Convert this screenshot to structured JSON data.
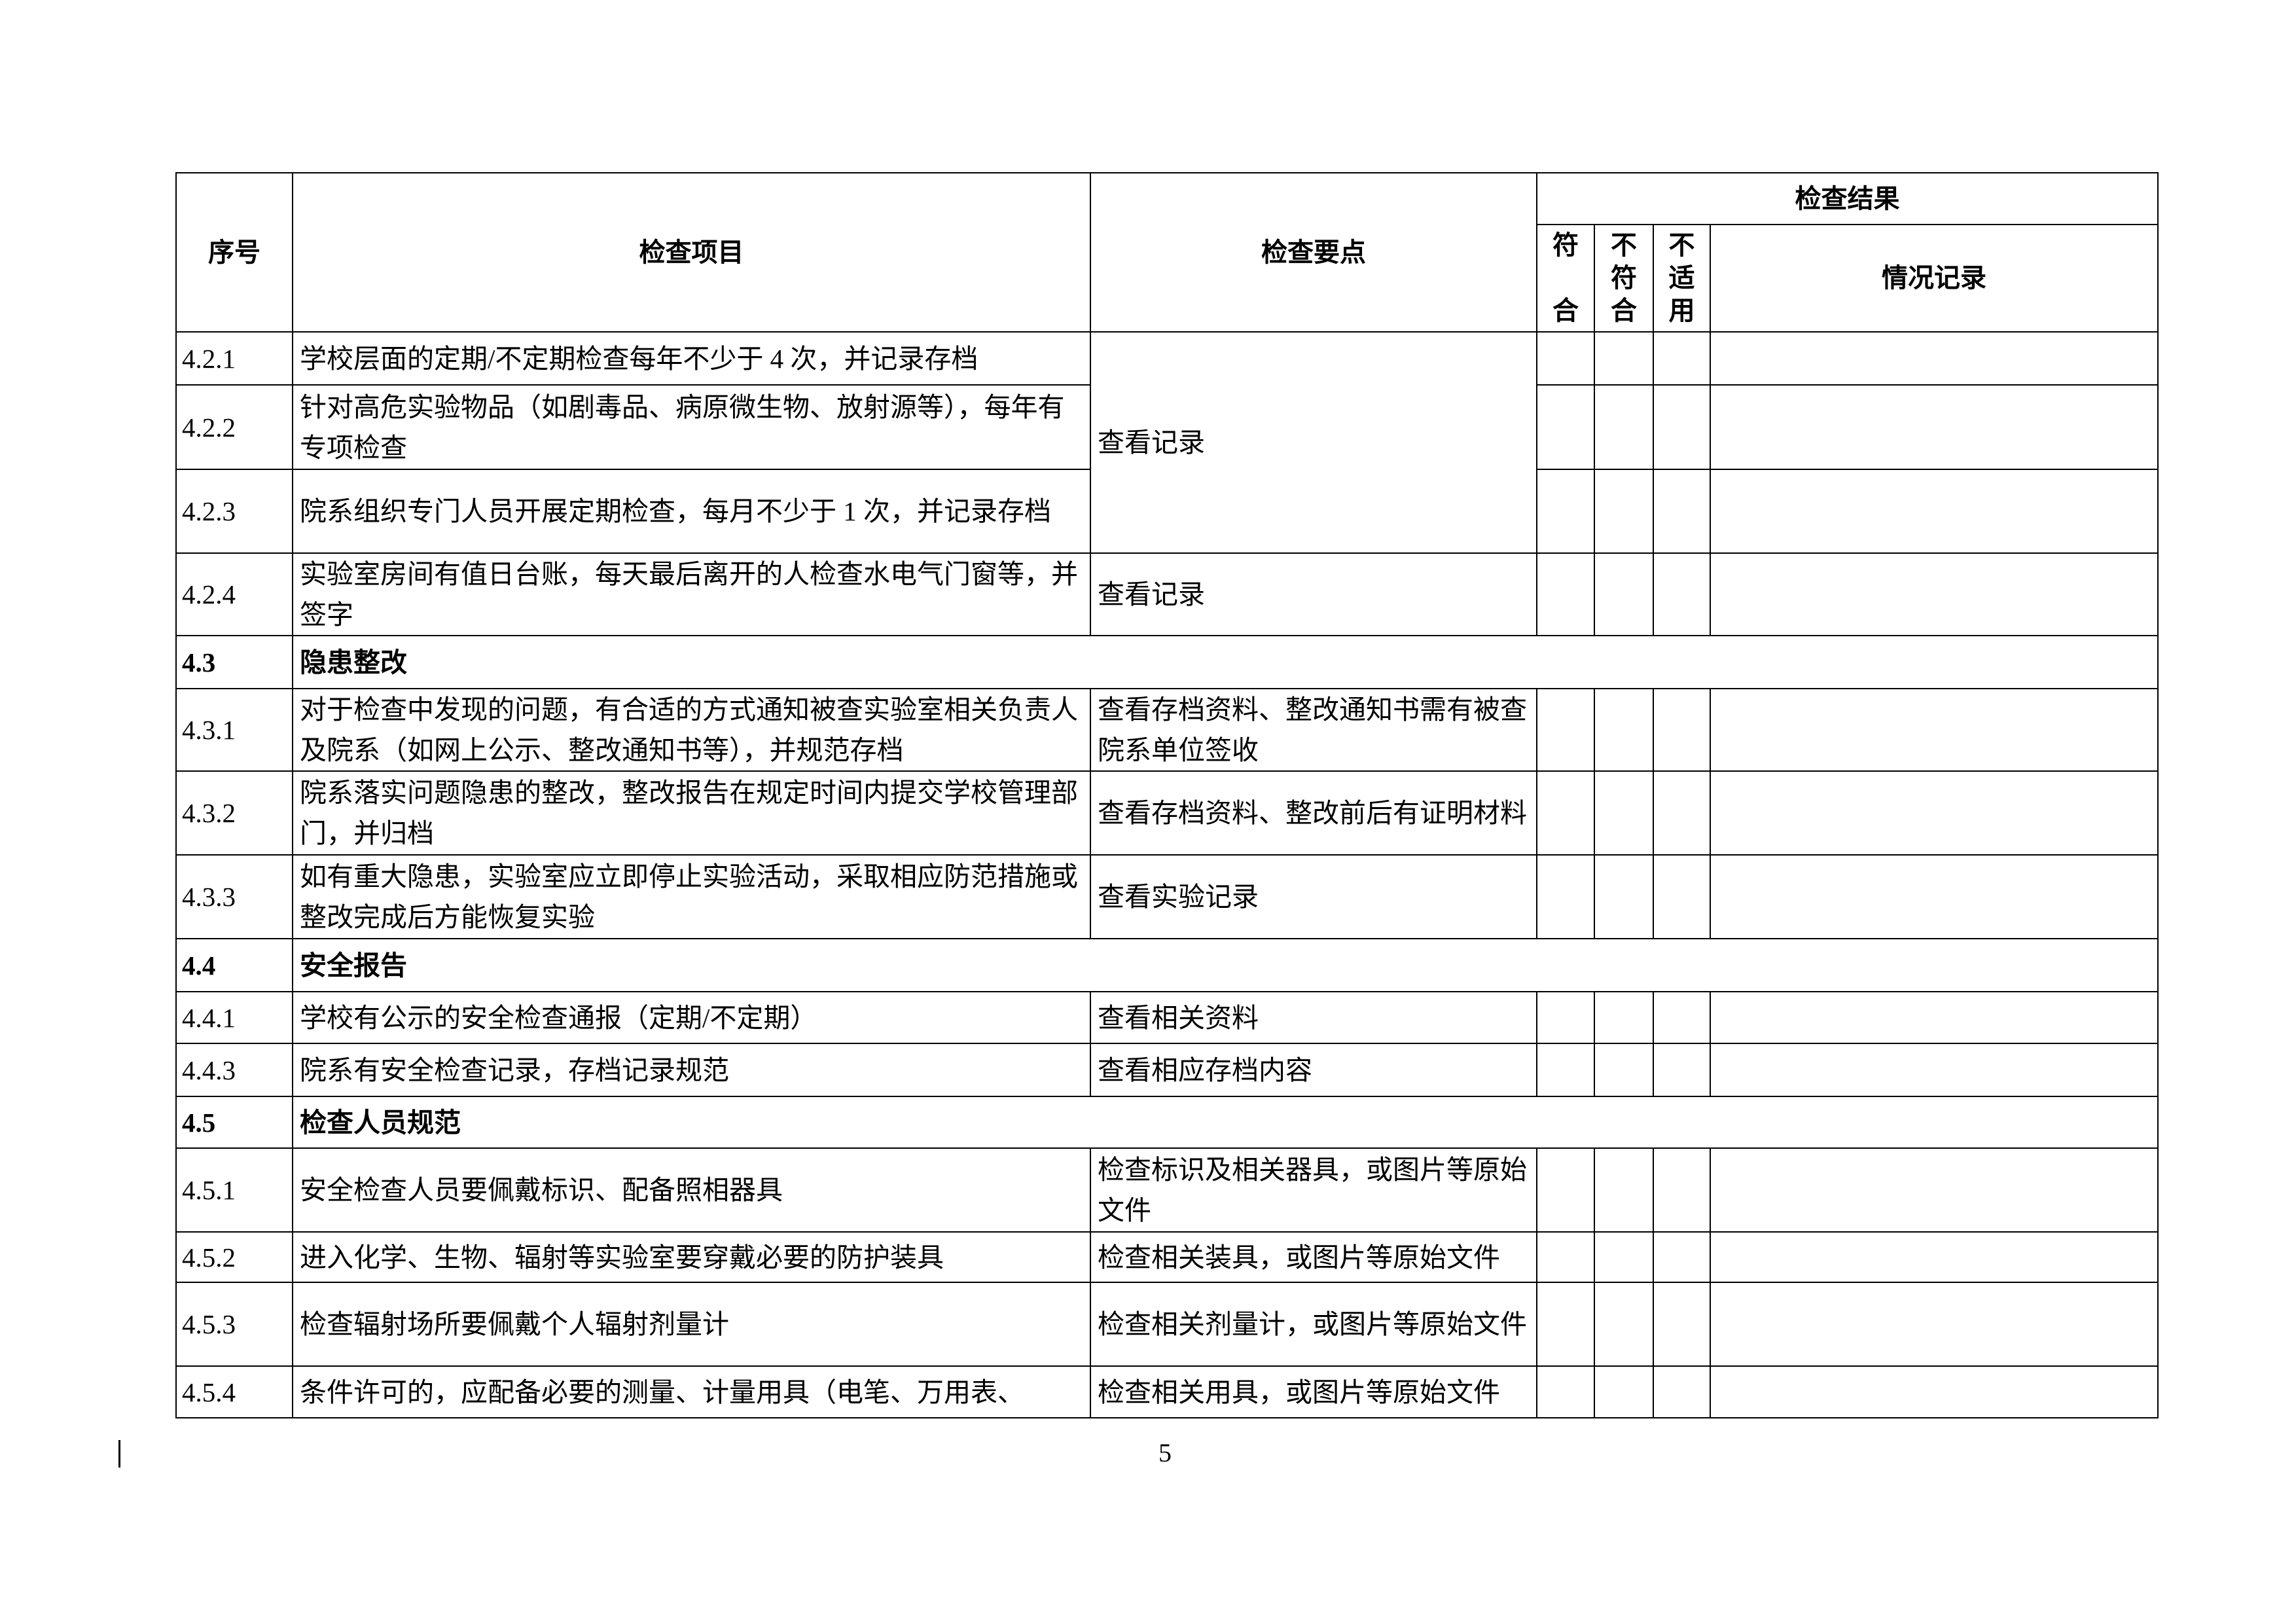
{
  "header": {
    "seq": "序号",
    "item": "检查项目",
    "points": "检查要点",
    "result_group": "检查结果",
    "conform": "符\n\n合",
    "nonconform": "不\n符\n合",
    "na": "不\n适\n用",
    "record": "情况记录"
  },
  "rows": [
    {
      "type": "item",
      "code": "4.2.1",
      "item": "学校层面的定期/不定期检查每年不少于 4 次，并记录存档",
      "points": "查看记录",
      "points_rowspan": 3
    },
    {
      "type": "item",
      "code": "4.2.2",
      "item": "针对高危实验物品（如剧毒品、病原微生物、放射源等），每年有专项检查",
      "points_merged": true
    },
    {
      "type": "item",
      "code": "4.2.3",
      "item": "院系组织专门人员开展定期检查，每月不少于 1 次，并记录存档",
      "points_merged": true
    },
    {
      "type": "item",
      "code": "4.2.4",
      "item": "实验室房间有值日台账，每天最后离开的人检查水电气门窗等，并签字",
      "points": "查看记录"
    },
    {
      "type": "section",
      "code": "4.3",
      "item": "隐患整改"
    },
    {
      "type": "item",
      "code": "4.3.1",
      "item": "对于检查中发现的问题，有合适的方式通知被查实验室相关负责人及院系（如网上公示、整改通知书等），并规范存档",
      "points": "查看存档资料、整改通知书需有被查院系单位签收"
    },
    {
      "type": "item",
      "code": "4.3.2",
      "item": "院系落实问题隐患的整改，整改报告在规定时间内提交学校管理部门，并归档",
      "points": "查看存档资料、整改前后有证明材料"
    },
    {
      "type": "item",
      "code": "4.3.3",
      "item": "如有重大隐患，实验室应立即停止实验活动，采取相应防范措施或整改完成后方能恢复实验",
      "points": "查看实验记录"
    },
    {
      "type": "section",
      "code": "4.4",
      "item": "安全报告"
    },
    {
      "type": "item",
      "code": "4.4.1",
      "item": "学校有公示的安全检查通报（定期/不定期）",
      "points": "查看相关资料"
    },
    {
      "type": "item",
      "code": "4.4.3",
      "item": "院系有安全检查记录，存档记录规范",
      "points": "查看相应存档内容"
    },
    {
      "type": "section",
      "code": "4.5",
      "item": "检查人员规范"
    },
    {
      "type": "item",
      "code": "4.5.1",
      "item": "安全检查人员要佩戴标识、配备照相器具",
      "points": "检查标识及相关器具，或图片等原始文件"
    },
    {
      "type": "item",
      "code": "4.5.2",
      "item": "进入化学、生物、辐射等实验室要穿戴必要的防护装具",
      "points": "检查相关装具，或图片等原始文件"
    },
    {
      "type": "item",
      "code": "4.5.3",
      "item": "检查辐射场所要佩戴个人辐射剂量计",
      "points": "检查相关剂量计，或图片等原始文件"
    },
    {
      "type": "item",
      "code": "4.5.4",
      "item": "条件许可的，应配备必要的测量、计量用具（电笔、万用表、",
      "points": "检查相关用具，或图片等原始文件"
    }
  ],
  "footer": {
    "page_number": "5"
  }
}
